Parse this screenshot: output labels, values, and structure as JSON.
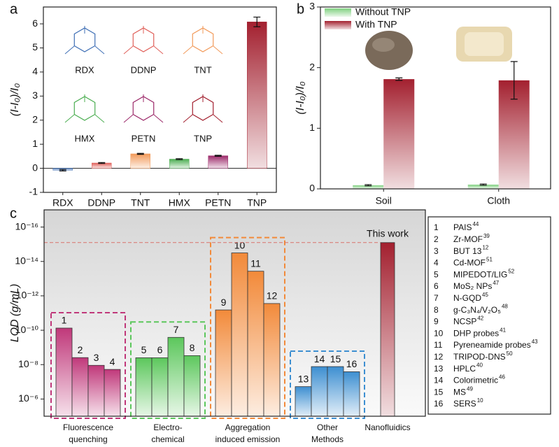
{
  "chart_data": [
    {
      "type": "bar",
      "panel_label": "a",
      "y_label": "(I-I₀)/I₀",
      "categories": [
        "RDX",
        "DDNP",
        "TNT",
        "HMX",
        "PETN",
        "TNP"
      ],
      "values": [
        -0.08,
        0.22,
        0.6,
        0.38,
        0.52,
        6.08
      ],
      "errors": [
        0.03,
        0.02,
        0.02,
        0.02,
        0.02,
        0.2
      ],
      "colors": [
        "#3f6fb5",
        "#e0605a",
        "#f29a5a",
        "#4cae52",
        "#9c2a6a",
        "#a3202f"
      ],
      "annotations": [
        "RDX",
        "DDNP",
        "TNT",
        "HMX",
        "PETN",
        "TNP"
      ],
      "ylim": [
        -1,
        6.7
      ],
      "yticks": [
        -1,
        0,
        1,
        2,
        3,
        4,
        5,
        6
      ]
    },
    {
      "type": "grouped_bar",
      "panel_label": "b",
      "y_label": "(I-I₀)/I₀",
      "categories": [
        "Soil",
        "Cloth"
      ],
      "series": [
        {
          "name": "Without TNP",
          "color": "#7fd07f",
          "values": [
            0.06,
            0.07
          ],
          "errors": [
            0.01,
            0.01
          ]
        },
        {
          "name": "With TNP",
          "color": "#a3202f",
          "values": [
            1.81,
            1.79
          ],
          "errors": [
            0.02,
            0.31
          ]
        }
      ],
      "ylim": [
        0,
        3
      ],
      "yticks": [
        0,
        1,
        2,
        3
      ]
    },
    {
      "type": "log_bar",
      "panel_label": "c",
      "y_label": "LOD (g/mL)",
      "log_y": true,
      "ylim": [
        1e-05,
        1e-17
      ],
      "yticks": [
        {
          "value": 1e-16,
          "label": "10⁻¹⁶"
        },
        {
          "value": 1e-14,
          "label": "10⁻¹⁴"
        },
        {
          "value": 1e-12,
          "label": "10⁻¹²"
        },
        {
          "value": 1e-10,
          "label": "10⁻¹⁰"
        },
        {
          "value": 1e-08,
          "label": "10⁻⁸"
        },
        {
          "value": 1e-06,
          "label": "10⁻⁶"
        }
      ],
      "series": [
        {
          "name": "Fluorescence\nquenching",
          "color": "#c0387a",
          "categories": [
            "1",
            "2",
            "3",
            "4"
          ],
          "values": [
            7.5e-11,
            3.9e-09,
            1.1e-08,
            1.9e-08
          ]
        },
        {
          "name": "Electro-\nchemical",
          "color": "#5cc75c",
          "categories": [
            "5",
            "6",
            "7",
            "8"
          ],
          "values": [
            4e-09,
            4e-09,
            2.6e-10,
            3e-09
          ]
        },
        {
          "name": "Aggregation\ninduced emission",
          "color": "#f28a3a",
          "categories": [
            "9",
            "10",
            "11",
            "12"
          ],
          "values": [
            6.6e-12,
            3.2e-15,
            3.7e-14,
            2.8e-12
          ]
        },
        {
          "name": "Other\nMethods",
          "color": "#3d8fd1",
          "categories": [
            "13",
            "14",
            "15",
            "16"
          ],
          "values": [
            1.9e-07,
            1.3e-08,
            1.3e-08,
            2.6e-08
          ]
        },
        {
          "name": "Nanofluidics",
          "color": "#a3202f",
          "categories": [
            null
          ],
          "values": [
            8e-16
          ]
        }
      ],
      "annotation": "This work",
      "references": [
        {
          "name": "PAIS",
          "ref": "44"
        },
        {
          "name": "Zr-MOF",
          "ref": "39"
        },
        {
          "name": "BUT 13",
          "ref": "12"
        },
        {
          "name": "Cd-MOF",
          "ref": "51"
        },
        {
          "name": "MIPEDOT/LIG",
          "ref": "52"
        },
        {
          "name": "MoS₂ NPs",
          "ref": "47"
        },
        {
          "name": "N-GQD",
          "ref": "45"
        },
        {
          "name": "g-C₃N₄/V₂O₅",
          "ref": "48"
        },
        {
          "name": "NCSP",
          "ref": "42"
        },
        {
          "name": "DHP probes",
          "ref": "41"
        },
        {
          "name": "Pyreneamide probes",
          "ref": "43"
        },
        {
          "name": "TRIPOD-DNS",
          "ref": "50"
        },
        {
          "name": "HPLC",
          "ref": "40"
        },
        {
          "name": "Colorimetric",
          "ref": "46"
        },
        {
          "name": "MS",
          "ref": "49"
        },
        {
          "name": "SERS",
          "ref": "10"
        }
      ]
    }
  ]
}
